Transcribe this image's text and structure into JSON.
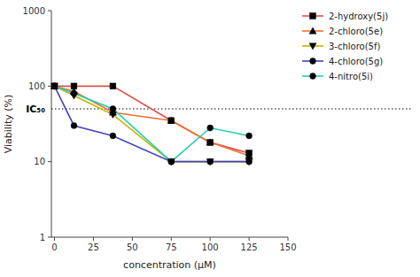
{
  "chart_data": {
    "type": "line",
    "x": [
      0,
      12.5,
      37.5,
      75,
      100,
      125
    ],
    "series": [
      {
        "name": "2-hydroxy(5j)",
        "color": "#d9534f",
        "marker": "square",
        "values": [
          100,
          100,
          100,
          35,
          18,
          13
        ]
      },
      {
        "name": "2-chloro(5e)",
        "color": "#f07030",
        "marker": "triangle-up",
        "values": [
          100,
          85,
          45,
          35,
          18,
          12
        ]
      },
      {
        "name": "3-chloro(5f)",
        "color": "#c8b400",
        "marker": "triangle-down",
        "values": [
          100,
          75,
          42,
          10,
          10,
          10
        ]
      },
      {
        "name": "4-chloro(5g)",
        "color": "#4444bb",
        "marker": "circle",
        "values": [
          100,
          30,
          22,
          10,
          10,
          10
        ]
      },
      {
        "name": "4-nitro(5i)",
        "color": "#22ccbb",
        "marker": "circle",
        "values": [
          100,
          80,
          50,
          10,
          28,
          22
        ]
      }
    ],
    "annotations": [
      {
        "text": "IC₅₀",
        "y": 50
      }
    ],
    "xlabel": "concentration (μM)",
    "ylabel": "Viability (%)",
    "xlim": [
      -2,
      150
    ],
    "ylim": [
      1,
      1000
    ],
    "xticks": [
      0,
      25,
      50,
      75,
      100,
      125,
      150
    ],
    "yticks": [
      1,
      10,
      100,
      1000
    ],
    "log": "y",
    "grid": false,
    "legend": "right"
  }
}
